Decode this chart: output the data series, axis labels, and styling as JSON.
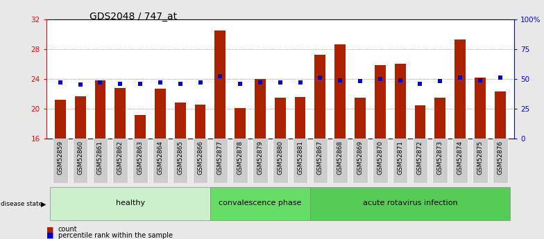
{
  "title": "GDS2048 / 747_at",
  "samples": [
    "GSM52859",
    "GSM52860",
    "GSM52861",
    "GSM52862",
    "GSM52863",
    "GSM52864",
    "GSM52865",
    "GSM52866",
    "GSM52877",
    "GSM52878",
    "GSM52879",
    "GSM52880",
    "GSM52881",
    "GSM52867",
    "GSM52868",
    "GSM52869",
    "GSM52870",
    "GSM52871",
    "GSM52872",
    "GSM52873",
    "GSM52874",
    "GSM52875",
    "GSM52876"
  ],
  "counts": [
    21.2,
    21.7,
    23.8,
    22.8,
    19.2,
    22.7,
    20.8,
    20.6,
    30.5,
    20.1,
    24.0,
    21.5,
    21.6,
    27.2,
    28.6,
    21.5,
    25.8,
    26.0,
    20.5,
    21.5,
    29.3,
    24.2,
    22.3
  ],
  "percentiles": [
    47,
    45,
    47,
    46,
    46,
    47,
    46,
    47,
    52,
    46,
    47,
    47,
    47,
    51,
    49,
    48,
    50,
    49,
    46,
    48,
    51,
    49,
    51
  ],
  "groups": [
    {
      "label": "healthy",
      "start": 0,
      "end": 8,
      "color": "#ccf0cc"
    },
    {
      "label": "convalescence phase",
      "start": 8,
      "end": 13,
      "color": "#66dd66"
    },
    {
      "label": "acute rotavirus infection",
      "start": 13,
      "end": 23,
      "color": "#55cc55"
    }
  ],
  "bar_color": "#aa2200",
  "percentile_color": "#0000cc",
  "ylim_left": [
    16,
    32
  ],
  "ylim_right": [
    0,
    100
  ],
  "yticks_left": [
    16,
    20,
    24,
    28,
    32
  ],
  "yticks_right": [
    0,
    25,
    50,
    75,
    100
  ],
  "yticklabels_right": [
    "0",
    "25",
    "50",
    "75",
    "100%"
  ],
  "bg_color": "#e8e8e8",
  "plot_bg": "#ffffff",
  "title_fontsize": 10,
  "tick_fontsize": 6.5,
  "label_fontsize": 8
}
